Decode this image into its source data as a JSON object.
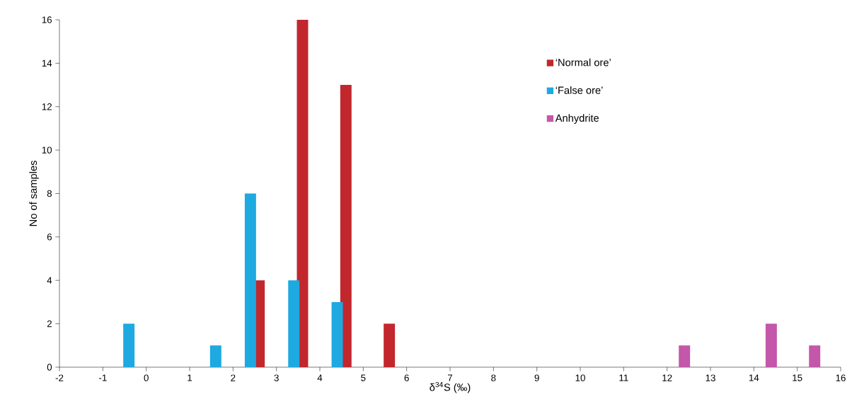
{
  "chart_data": {
    "type": "bar",
    "xlabel": "δ$^{34}$S (‰)",
    "ylabel": "No of samples",
    "xlim": [
      -2,
      16
    ],
    "xticks": [
      -2,
      -1,
      0,
      1,
      2,
      3,
      4,
      5,
      6,
      7,
      8,
      9,
      10,
      11,
      12,
      13,
      14,
      15,
      16
    ],
    "ylim": [
      0,
      16
    ],
    "yticks": [
      0,
      2,
      4,
      6,
      8,
      10,
      12,
      14,
      16
    ],
    "legend": "top right",
    "series": [
      {
        "name": "‘Normal ore’",
        "color": "#c1272d",
        "x": [
          2.6,
          3.6,
          4.6,
          5.6
        ],
        "values": [
          4,
          16,
          13,
          2
        ]
      },
      {
        "name": "‘False ore’",
        "color": "#1ea9e1",
        "x": [
          -0.4,
          1.6,
          2.4,
          3.4,
          4.4
        ],
        "values": [
          2,
          1,
          8,
          4,
          3
        ]
      },
      {
        "name": "Anhydrite",
        "color": "#c457a9",
        "x": [
          12.4,
          14.4,
          15.4
        ],
        "values": [
          1,
          2,
          1
        ]
      }
    ]
  }
}
